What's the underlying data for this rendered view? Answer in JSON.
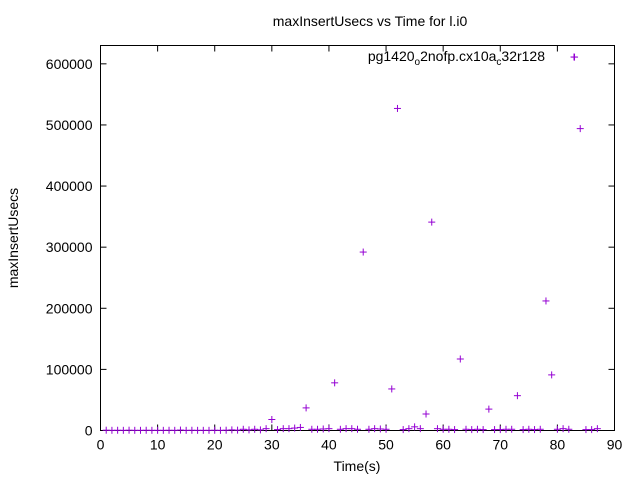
{
  "chart_data": {
    "type": "scatter",
    "title": "maxInsertUsecs vs Time for l.i0",
    "xlabel": "Time(s)",
    "ylabel": "maxInsertUsecs",
    "xlim": [
      0,
      90
    ],
    "ylim": [
      0,
      630000
    ],
    "x_ticks": [
      0,
      10,
      20,
      30,
      40,
      50,
      60,
      70,
      80,
      90
    ],
    "y_ticks": [
      0,
      100000,
      200000,
      300000,
      400000,
      500000,
      600000
    ],
    "x_tick_labels": [
      "0",
      "10",
      "20",
      "30",
      "40",
      "50",
      "60",
      "70",
      "80",
      "90"
    ],
    "y_tick_labels": [
      "0",
      "100000",
      "200000",
      "300000",
      "400000",
      "500000",
      "600000"
    ],
    "grid": false,
    "legend_position": "top-right",
    "marker": "+",
    "series": [
      {
        "name": "pg1420_o2nofp.cx10a_c32r128",
        "legend_parts": [
          {
            "text": "pg1420",
            "sub": false
          },
          {
            "text": "o",
            "sub": true
          },
          {
            "text": "2nofp.cx10a",
            "sub": false
          },
          {
            "text": "c",
            "sub": true
          },
          {
            "text": "32r128",
            "sub": false
          }
        ],
        "color": "#9400d3",
        "x": [
          1,
          2,
          3,
          4,
          5,
          6,
          7,
          8,
          9,
          10,
          11,
          12,
          13,
          14,
          15,
          16,
          17,
          18,
          19,
          20,
          21,
          22,
          23,
          24,
          25,
          26,
          27,
          28,
          29,
          30,
          31,
          32,
          33,
          34,
          35,
          36,
          37,
          38,
          39,
          40,
          41,
          42,
          43,
          44,
          45,
          46,
          47,
          48,
          49,
          50,
          51,
          52,
          53,
          54,
          55,
          56,
          57,
          58,
          59,
          60,
          61,
          62,
          63,
          64,
          65,
          66,
          67,
          68,
          69,
          70,
          71,
          72,
          73,
          74,
          75,
          76,
          77,
          78,
          79,
          80,
          81,
          82,
          83,
          84,
          85,
          86,
          87
        ],
        "y": [
          500,
          300,
          400,
          300,
          500,
          300,
          300,
          400,
          300,
          300,
          300,
          400,
          300,
          700,
          300,
          400,
          300,
          300,
          300,
          400,
          300,
          500,
          1000,
          600,
          2000,
          1000,
          2000,
          1000,
          3000,
          18000,
          1500,
          3000,
          3000,
          4000,
          5000,
          37000,
          2000,
          2000,
          2500,
          3000,
          78000,
          2000,
          3000,
          3000,
          2000,
          292000,
          2000,
          3000,
          2500,
          2000,
          68000,
          527000,
          1500,
          3000,
          6000,
          3000,
          27000,
          341000,
          3000,
          2000,
          2000,
          1500,
          117000,
          2000,
          1500,
          2000,
          1500,
          35000,
          1500,
          1500,
          2000,
          2000,
          57000,
          1500,
          2000,
          1500,
          2000,
          212000,
          91000,
          2000,
          3000,
          2000,
          611000,
          494000,
          1500,
          1500,
          3000
        ]
      }
    ]
  }
}
